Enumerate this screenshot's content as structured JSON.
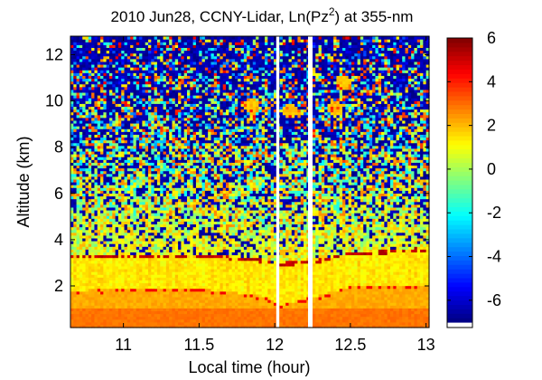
{
  "chart_data": {
    "type": "heatmap",
    "title": "2010 Jun28, CCNY-Lidar, Ln(Pz²) at 355-nm",
    "xlabel": "Local time (hour)",
    "ylabel": "Altitude (km)",
    "xlim": [
      10.65,
      13.02
    ],
    "ylim": [
      0.2,
      12.8
    ],
    "x_ticks": [
      11,
      11.5,
      12,
      12.5,
      13
    ],
    "x_tick_labels": [
      "11",
      "11.5",
      "12",
      "12.5",
      "13"
    ],
    "y_ticks": [
      2,
      4,
      6,
      8,
      10,
      12
    ],
    "y_tick_labels": [
      "2",
      "4",
      "6",
      "8",
      "10",
      "12"
    ],
    "colorbar": {
      "colormap": "jet",
      "clim": [
        -7,
        6
      ],
      "ticks": [
        -6,
        -4,
        -2,
        0,
        2,
        4,
        6
      ],
      "tick_labels": [
        "-6",
        "-4",
        "-2",
        "0",
        "2",
        "4",
        "6"
      ]
    },
    "data_gaps_x": [
      [
        12.01,
        12.03
      ],
      [
        12.22,
        12.25
      ]
    ],
    "features": {
      "boundary_layer_top_km": [
        {
          "x": 10.65,
          "y": 3.4
        },
        {
          "x": 11.0,
          "y": 3.4
        },
        {
          "x": 11.5,
          "y": 3.4
        },
        {
          "x": 11.9,
          "y": 3.2
        },
        {
          "x": 12.0,
          "y": 3.0
        },
        {
          "x": 12.3,
          "y": 3.2
        },
        {
          "x": 12.45,
          "y": 3.4
        },
        {
          "x": 12.6,
          "y": 3.5
        },
        {
          "x": 12.8,
          "y": 3.6
        },
        {
          "x": 13.02,
          "y": 3.7
        }
      ],
      "surface_layer_top_km": [
        {
          "x": 10.65,
          "y": 1.8
        },
        {
          "x": 11.0,
          "y": 1.9
        },
        {
          "x": 11.5,
          "y": 1.9
        },
        {
          "x": 11.9,
          "y": 1.6
        },
        {
          "x": 12.05,
          "y": 1.2
        },
        {
          "x": 12.3,
          "y": 1.6
        },
        {
          "x": 12.5,
          "y": 2.0
        },
        {
          "x": 13.02,
          "y": 2.0
        }
      ],
      "cloud_patches": [
        {
          "x": 11.85,
          "y": 9.8
        },
        {
          "x": 12.1,
          "y": 9.6
        },
        {
          "x": 12.4,
          "y": 9.7
        },
        {
          "x": 12.45,
          "y": 10.8
        }
      ]
    }
  }
}
